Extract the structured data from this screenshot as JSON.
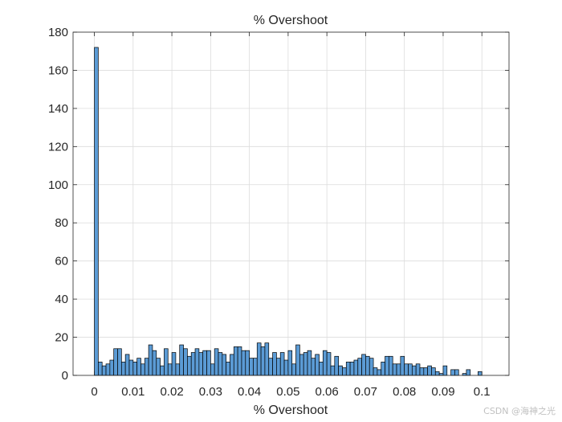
{
  "chart_data": {
    "type": "bar",
    "title": "% Overshoot",
    "xlabel": "% Overshoot",
    "ylabel": "",
    "xlim": [
      -0.0055,
      0.107
    ],
    "ylim": [
      0,
      180
    ],
    "xticks": [
      0,
      0.01,
      0.02,
      0.03,
      0.04,
      0.05,
      0.06,
      0.07,
      0.08,
      0.09,
      0.1
    ],
    "xtick_labels": [
      "0",
      "0.01",
      "0.02",
      "0.03",
      "0.04",
      "0.05",
      "0.06",
      "0.07",
      "0.08",
      "0.09",
      "0.1"
    ],
    "yticks": [
      0,
      20,
      40,
      60,
      80,
      100,
      120,
      140,
      160,
      180
    ],
    "ytick_labels": [
      "0",
      "20",
      "40",
      "60",
      "80",
      "100",
      "120",
      "140",
      "160",
      "180"
    ],
    "grid": true,
    "bin_start": 0,
    "bin_width": 0.001,
    "values": [
      172,
      7,
      5,
      6,
      8,
      14,
      14,
      7,
      11,
      8,
      7,
      9,
      6,
      9,
      16,
      13,
      9,
      5,
      14,
      6,
      12,
      6,
      16,
      14,
      10,
      12,
      14,
      12,
      13,
      13,
      6,
      14,
      12,
      11,
      7,
      11,
      15,
      15,
      13,
      13,
      9,
      9,
      17,
      15,
      17,
      9,
      12,
      9,
      12,
      8,
      13,
      6,
      16,
      11,
      12,
      13,
      9,
      11,
      7,
      13,
      12,
      5,
      10,
      5,
      4,
      7,
      7,
      8,
      9,
      11,
      10,
      9,
      4,
      3,
      7,
      10,
      10,
      6,
      6,
      10,
      6,
      6,
      5,
      6,
      4,
      4,
      5,
      4,
      2,
      1,
      5,
      0,
      3,
      3,
      0,
      1,
      3,
      0,
      0,
      2
    ],
    "bar_color": "#5b9bd5",
    "edge_color": "#000000"
  },
  "watermark": "CSDN @海神之光"
}
